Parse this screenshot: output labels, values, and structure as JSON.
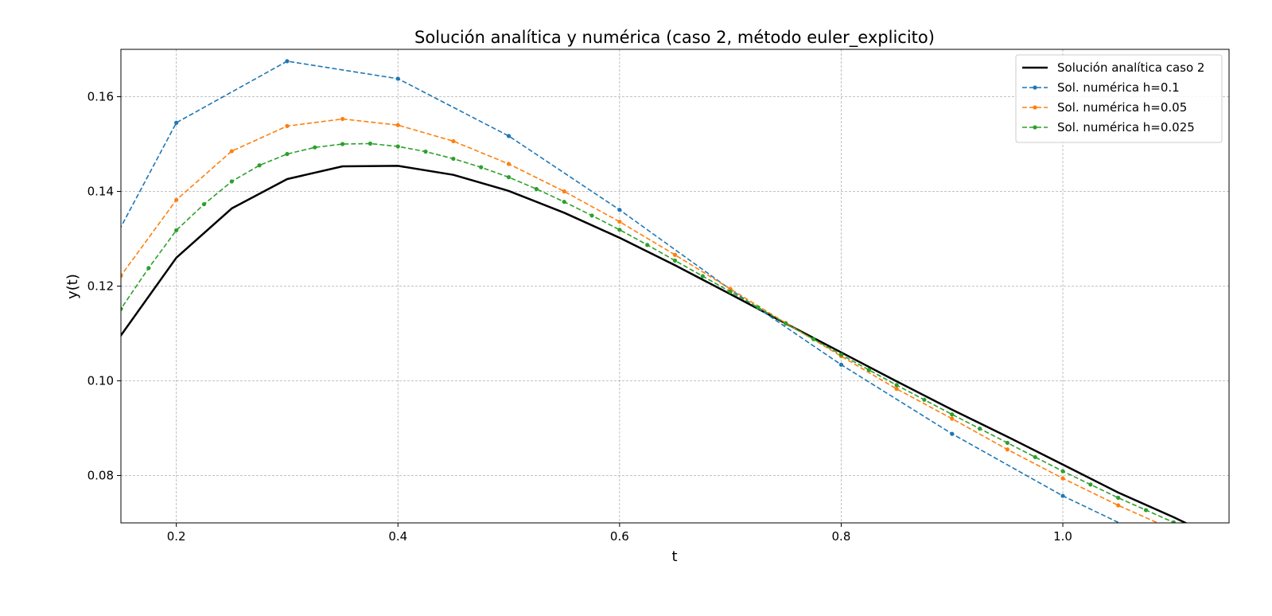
{
  "chart_data": {
    "type": "line",
    "title": "Solución analítica y numérica (caso 2, método euler_explicito)",
    "xlabel": "t",
    "ylabel": "y(t)",
    "xlim": [
      0.15,
      1.15
    ],
    "ylim": [
      0.07,
      0.17
    ],
    "xticks": [
      0.2,
      0.4,
      0.6,
      0.8,
      1.0
    ],
    "xtick_labels": [
      "0.2",
      "0.4",
      "0.6",
      "0.8",
      "1.0"
    ],
    "yticks": [
      0.08,
      0.1,
      0.12,
      0.14,
      0.16
    ],
    "ytick_labels": [
      "0.08",
      "0.10",
      "0.12",
      "0.14",
      "0.16"
    ],
    "grid": true,
    "legend_position": "top-right",
    "series": [
      {
        "name": "Solución analítica caso 2",
        "color": "#000000",
        "style": "solid",
        "markers": false,
        "x": [
          0.1,
          0.15,
          0.2,
          0.25,
          0.3,
          0.35,
          0.4,
          0.45,
          0.5,
          0.55,
          0.6,
          0.65,
          0.7,
          0.75,
          0.8,
          0.85,
          0.9,
          0.95,
          1.0,
          1.05,
          1.1,
          1.15
        ],
        "y": [
          0.0911,
          0.1096,
          0.126,
          0.1364,
          0.1426,
          0.1453,
          0.1454,
          0.1435,
          0.1401,
          0.1355,
          0.1302,
          0.1244,
          0.1183,
          0.1121,
          0.106,
          0.0999,
          0.0939,
          0.0882,
          0.0823,
          0.0764,
          0.0712,
          0.0656
        ]
      },
      {
        "name": "Sol. numérica h=0.1",
        "color": "#1f77b4",
        "style": "dashed",
        "markers": true,
        "x": [
          0.1,
          0.2,
          0.3,
          0.4,
          0.5,
          0.6,
          0.7,
          0.8,
          0.9,
          1.0,
          1.1
        ],
        "y": [
          0.1105,
          0.1545,
          0.1675,
          0.1638,
          0.1517,
          0.1361,
          0.1193,
          0.1034,
          0.0888,
          0.0757,
          0.0645
        ]
      },
      {
        "name": "Sol. numérica h=0.05",
        "color": "#ff7f0e",
        "style": "dashed",
        "markers": true,
        "x": [
          0.1,
          0.15,
          0.2,
          0.25,
          0.3,
          0.35,
          0.4,
          0.45,
          0.5,
          0.55,
          0.6,
          0.65,
          0.7,
          0.75,
          0.8,
          0.85,
          0.9,
          0.95,
          1.0,
          1.05,
          1.1,
          1.15
        ],
        "y": [
          0.1005,
          0.1222,
          0.1382,
          0.1485,
          0.1538,
          0.1553,
          0.154,
          0.1506,
          0.1458,
          0.14,
          0.1336,
          0.1266,
          0.1194,
          0.1122,
          0.1052,
          0.0983,
          0.092,
          0.0855,
          0.0794,
          0.0737,
          0.0685,
          0.0635
        ]
      },
      {
        "name": "Sol. numérica h=0.025",
        "color": "#2ca02c",
        "style": "dashed",
        "markers": true,
        "x": [
          0.125,
          0.15,
          0.175,
          0.2,
          0.225,
          0.25,
          0.275,
          0.3,
          0.325,
          0.35,
          0.375,
          0.4,
          0.425,
          0.45,
          0.475,
          0.5,
          0.525,
          0.55,
          0.575,
          0.6,
          0.625,
          0.65,
          0.675,
          0.7,
          0.725,
          0.75,
          0.775,
          0.8,
          0.825,
          0.85,
          0.875,
          0.9,
          0.925,
          0.95,
          0.975,
          1.0,
          1.025,
          1.05,
          1.075,
          1.1,
          1.125,
          1.15
        ],
        "y": [
          0.1037,
          0.1152,
          0.1238,
          0.1318,
          0.1373,
          0.1421,
          0.1455,
          0.1479,
          0.1493,
          0.15,
          0.1501,
          0.1495,
          0.1484,
          0.1469,
          0.1451,
          0.143,
          0.1405,
          0.1378,
          0.1349,
          0.1319,
          0.1287,
          0.1254,
          0.1221,
          0.1188,
          0.1155,
          0.1121,
          0.1088,
          0.1055,
          0.1023,
          0.0991,
          0.096,
          0.0929,
          0.0899,
          0.0869,
          0.0839,
          0.0809,
          0.0781,
          0.0753,
          0.0727,
          0.0701,
          0.0676,
          0.0651
        ]
      }
    ]
  }
}
